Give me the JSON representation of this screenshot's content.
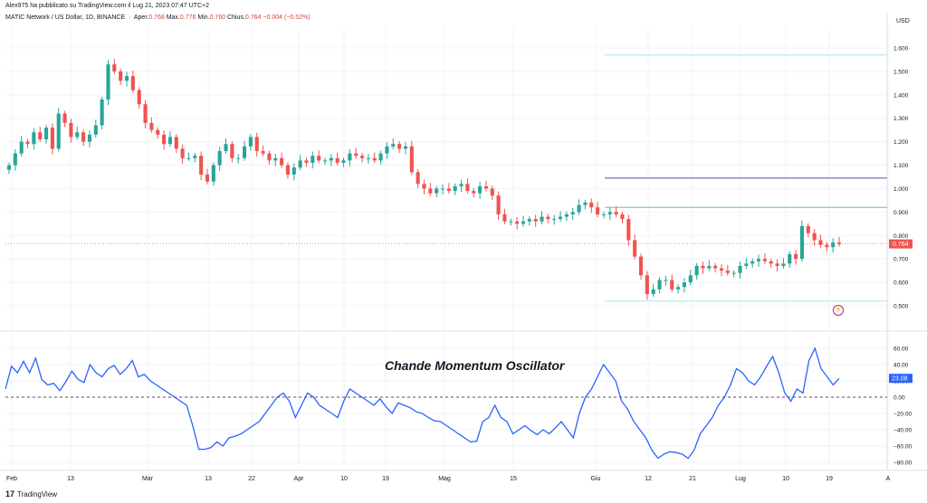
{
  "header": {
    "published": "Alex975 ha pubblicato su TradingView.com il Lug 21, 2023 07:47 UTC+2",
    "symbol": "MATIC Network / US Dollar, 1D, BINANCE",
    "open_label": "Aper.",
    "open": "0.768",
    "high_label": "Max.",
    "high": "0.776",
    "low_label": "Min.",
    "low": "0.760",
    "close_label": "Chius.",
    "close": "0.764",
    "change": "−0.004 (−0.52%)"
  },
  "currency": "USD",
  "colors": {
    "up": "#26a69a",
    "down": "#ef5350",
    "osc": "#2962ff",
    "purple_line": "#7e57c2",
    "green_line": "#81c784",
    "cyan_line": "#b2ebf2"
  },
  "footer": {
    "brand": "TradingView"
  },
  "alert_icon": "lightning-icon",
  "chart_data": [
    {
      "type": "candlestick",
      "title": "MATIC Network / US Dollar, 1D, BINANCE",
      "ylim": [
        0.45,
        1.65
      ],
      "y_ticks": [
        "1.600",
        "1.500",
        "1.400",
        "1.300",
        "1.200",
        "1.100",
        "1.000",
        "0.900",
        "0.800",
        "0.700",
        "0.600",
        "0.500"
      ],
      "x_ticks": [
        "Feb",
        "13",
        "Mar",
        "13",
        "22",
        "Apr",
        "10",
        "19",
        "Mag",
        "15",
        "Giu",
        "12",
        "21",
        "Lug",
        "10",
        "19",
        "A"
      ],
      "last_price": "0.764",
      "horizontal_lines": [
        {
          "name": "top",
          "value": 1.57,
          "color": "#b2ebf2"
        },
        {
          "name": "purple",
          "value": 1.045,
          "color": "#7e57c2"
        },
        {
          "name": "green",
          "value": 0.92,
          "color": "#81c784"
        },
        {
          "name": "bottom",
          "value": 0.52,
          "color": "#b2ebf2"
        }
      ],
      "closes": [
        1.1,
        1.15,
        1.2,
        1.19,
        1.24,
        1.21,
        1.26,
        1.17,
        1.32,
        1.28,
        1.22,
        1.24,
        1.2,
        1.23,
        1.27,
        1.38,
        1.53,
        1.5,
        1.46,
        1.48,
        1.42,
        1.36,
        1.28,
        1.25,
        1.23,
        1.19,
        1.22,
        1.17,
        1.13,
        1.13,
        1.14,
        1.06,
        1.03,
        1.1,
        1.16,
        1.19,
        1.13,
        1.13,
        1.18,
        1.22,
        1.16,
        1.15,
        1.12,
        1.13,
        1.1,
        1.06,
        1.09,
        1.12,
        1.11,
        1.14,
        1.12,
        1.12,
        1.13,
        1.11,
        1.12,
        1.15,
        1.14,
        1.13,
        1.13,
        1.12,
        1.15,
        1.18,
        1.19,
        1.17,
        1.18,
        1.07,
        1.02,
        1.0,
        0.98,
        1.0,
        1.0,
        0.99,
        1.01,
        1.02,
        0.99,
        0.98,
        1.01,
        1.0,
        0.97,
        0.89,
        0.86,
        0.86,
        0.85,
        0.86,
        0.87,
        0.86,
        0.88,
        0.87,
        0.87,
        0.88,
        0.89,
        0.9,
        0.93,
        0.94,
        0.92,
        0.89,
        0.89,
        0.9,
        0.89,
        0.87,
        0.78,
        0.71,
        0.63,
        0.55,
        0.57,
        0.61,
        0.61,
        0.57,
        0.58,
        0.6,
        0.63,
        0.67,
        0.66,
        0.67,
        0.66,
        0.65,
        0.64,
        0.64,
        0.67,
        0.68,
        0.69,
        0.7,
        0.69,
        0.68,
        0.67,
        0.68,
        0.72,
        0.7,
        0.84,
        0.81,
        0.78,
        0.76,
        0.75,
        0.77,
        0.764
      ]
    },
    {
      "type": "line",
      "title": "Chande Momentum Oscillator",
      "ylim": [
        -90,
        72
      ],
      "y_ticks": [
        "60.00",
        "40.00",
        "20.00",
        "0.00",
        "−20.00",
        "−40.00",
        "−60.00",
        "−80.00"
      ],
      "last_value": "23.08",
      "zero_line": 0,
      "values": [
        10,
        38,
        30,
        44,
        30,
        48,
        22,
        15,
        17,
        8,
        19,
        32,
        22,
        18,
        40,
        30,
        25,
        35,
        39,
        28,
        35,
        45,
        25,
        28,
        20,
        15,
        10,
        5,
        0,
        -5,
        -10,
        -35,
        -64,
        -64,
        -62,
        -55,
        -60,
        -50,
        -48,
        -45,
        -40,
        -35,
        -30,
        -20,
        -10,
        0,
        5,
        -5,
        -25,
        -10,
        5,
        0,
        -10,
        -15,
        -20,
        -25,
        -5,
        10,
        5,
        0,
        -5,
        -10,
        -2,
        -12,
        -20,
        -7,
        -10,
        -13,
        -18,
        -20,
        -25,
        -29,
        -30,
        -35,
        -40,
        -45,
        -50,
        -55,
        -54,
        -30,
        -25,
        -10,
        -25,
        -30,
        -45,
        -40,
        -35,
        -41,
        -46,
        -40,
        -45,
        -38,
        -30,
        -40,
        -50,
        -20,
        0,
        10,
        25,
        40,
        30,
        20,
        -5,
        -15,
        -30,
        -40,
        -50,
        -65,
        -75,
        -70,
        -67,
        -68,
        -70,
        -75,
        -65,
        -45,
        -35,
        -25,
        -10,
        0,
        15,
        35,
        30,
        20,
        15,
        25,
        38,
        50,
        30,
        5,
        -5,
        10,
        5,
        45,
        60,
        35,
        25,
        15,
        23.08
      ]
    }
  ]
}
